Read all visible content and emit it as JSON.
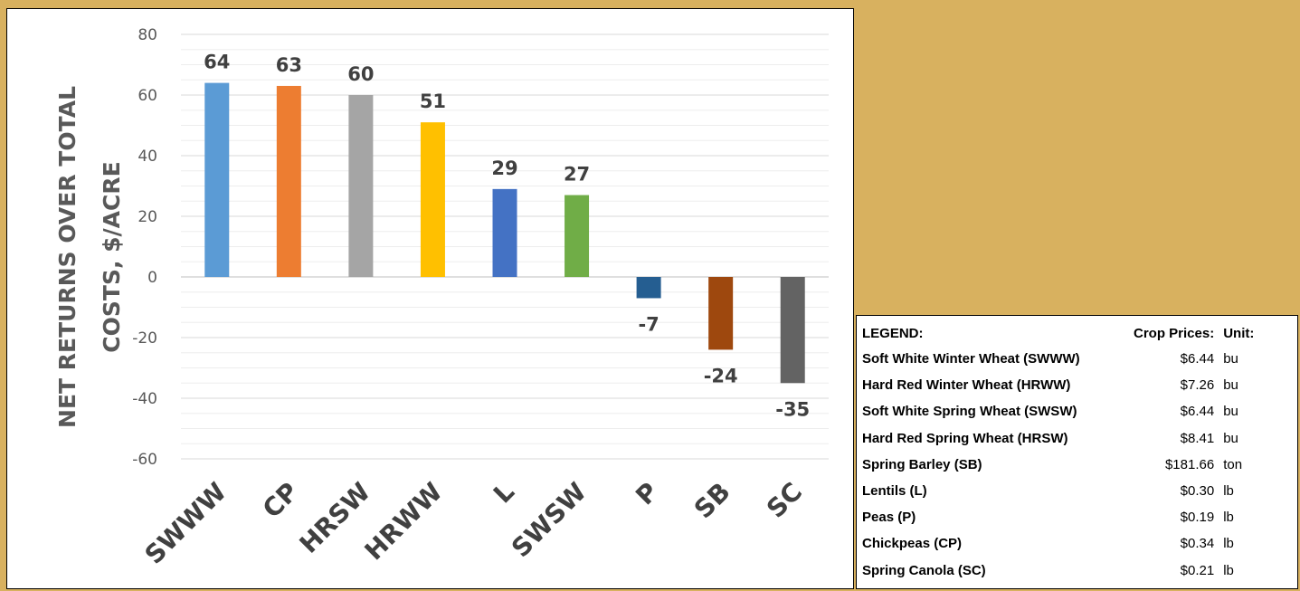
{
  "chart_data": {
    "type": "bar",
    "categories": [
      "SWWW",
      "CP",
      "HRSW",
      "HRWW",
      "L",
      "SWSW",
      "P",
      "SB",
      "SC"
    ],
    "values": [
      64,
      63,
      60,
      51,
      29,
      27,
      -7,
      -24,
      -35
    ],
    "data_labels": [
      "64",
      "63",
      "60",
      "51",
      "29",
      "27",
      "-7",
      "-24",
      "-35"
    ],
    "colors": [
      "#5b9bd5",
      "#ed7d31",
      "#a5a5a5",
      "#ffc000",
      "#4472c4",
      "#70ad47",
      "#255e91",
      "#9e480e",
      "#636363"
    ],
    "ylabel_line1": "NET RETURNS OVER TOTAL",
    "ylabel_line2": "COSTS, $/ACRE",
    "xlabel": "",
    "title": "",
    "ylim": [
      -60,
      80
    ],
    "yticks": [
      80,
      60,
      40,
      20,
      0,
      -20,
      -40,
      -60
    ],
    "grid": "major and minor horizontal",
    "legend": "none"
  },
  "legend_table": {
    "header": {
      "label": "LEGEND:",
      "price": "Crop Prices:",
      "unit": "Unit:"
    },
    "rows": [
      {
        "name": "Soft White Winter Wheat (SWWW)",
        "price": "$6.44",
        "unit": "bu"
      },
      {
        "name": "Hard Red Winter Wheat (HRWW)",
        "price": "$7.26",
        "unit": "bu"
      },
      {
        "name": "Soft White Spring Wheat (SWSW)",
        "price": "$6.44",
        "unit": "bu"
      },
      {
        "name": "Hard Red Spring Wheat (HRSW)",
        "price": "$8.41",
        "unit": "bu"
      },
      {
        "name": "Spring Barley (SB)",
        "price": "$181.66",
        "unit": "ton"
      },
      {
        "name": "Lentils (L)",
        "price": "$0.30",
        "unit": "lb"
      },
      {
        "name": "Peas (P)",
        "price": "$0.19",
        "unit": "lb"
      },
      {
        "name": "Chickpeas (CP)",
        "price": "$0.34",
        "unit": "lb"
      },
      {
        "name": "Spring Canola (SC)",
        "price": "$0.21",
        "unit": "lb"
      }
    ]
  },
  "colors": {
    "background": "#d8b15f",
    "panel": "#ffffff"
  }
}
